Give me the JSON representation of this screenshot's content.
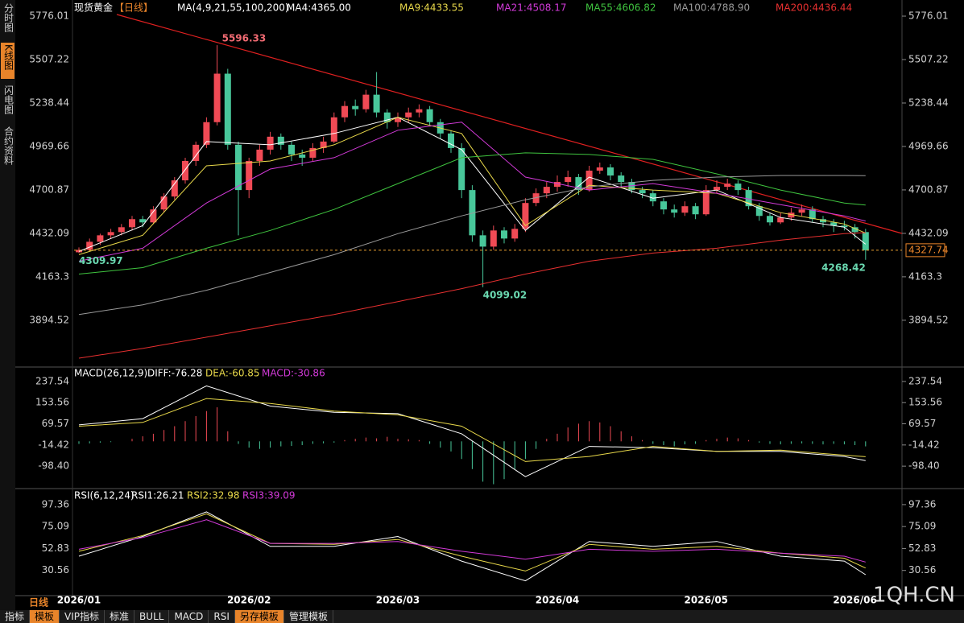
{
  "chart_data": {
    "type": "candlestick",
    "title": "现货黄金",
    "period": "【日线】",
    "ma_params": "MA(4,9,21,55,100,200)",
    "categories": [
      "2026/01",
      null,
      null,
      null,
      null,
      null,
      null,
      null,
      null,
      null,
      null,
      null,
      null,
      null,
      null,
      null,
      "2026/02",
      null,
      null,
      null,
      null,
      null,
      null,
      null,
      null,
      null,
      null,
      null,
      null,
      null,
      "2026/03",
      null,
      null,
      null,
      null,
      null,
      null,
      null,
      null,
      null,
      null,
      null,
      null,
      null,
      null,
      "2026/04",
      null,
      null,
      null,
      null,
      null,
      null,
      null,
      null,
      null,
      null,
      null,
      null,
      null,
      "2026/05",
      null,
      null,
      null,
      null,
      null,
      null,
      null,
      null,
      null,
      null,
      null,
      null,
      null,
      "2026/06",
      null
    ],
    "candles": [
      [
        4315,
        4345,
        4309.97,
        4330
      ],
      [
        4330,
        4400,
        4320,
        4380
      ],
      [
        4380,
        4430,
        4360,
        4420
      ],
      [
        4420,
        4460,
        4400,
        4440
      ],
      [
        4440,
        4490,
        4420,
        4470
      ],
      [
        4470,
        4540,
        4450,
        4520
      ],
      [
        4520,
        4540,
        4470,
        4500
      ],
      [
        4500,
        4600,
        4490,
        4580
      ],
      [
        4580,
        4680,
        4560,
        4660
      ],
      [
        4660,
        4780,
        4640,
        4760
      ],
      [
        4760,
        4900,
        4740,
        4880
      ],
      [
        4880,
        5000,
        4850,
        4980
      ],
      [
        4980,
        5150,
        4960,
        5120
      ],
      [
        5120,
        5596.33,
        5100,
        5420
      ],
      [
        5420,
        5450,
        4950,
        4980
      ],
      [
        4980,
        5000,
        4420,
        4700
      ],
      [
        4700,
        4900,
        4650,
        4880
      ],
      [
        4880,
        4980,
        4850,
        4950
      ],
      [
        4950,
        5060,
        4920,
        5030
      ],
      [
        5030,
        5050,
        4950,
        4980
      ],
      [
        4980,
        5000,
        4880,
        4920
      ],
      [
        4920,
        4950,
        4850,
        4900
      ],
      [
        4900,
        4990,
        4880,
        4960
      ],
      [
        4960,
        5030,
        4930,
        5000
      ],
      [
        5000,
        5180,
        4990,
        5150
      ],
      [
        5150,
        5250,
        5120,
        5220
      ],
      [
        5220,
        5260,
        5160,
        5200
      ],
      [
        5200,
        5320,
        5180,
        5290
      ],
      [
        5290,
        5430,
        5150,
        5180
      ],
      [
        5180,
        5200,
        5080,
        5120
      ],
      [
        5120,
        5180,
        5090,
        5150
      ],
      [
        5150,
        5210,
        5120,
        5180
      ],
      [
        5180,
        5230,
        5150,
        5200
      ],
      [
        5200,
        5220,
        5100,
        5120
      ],
      [
        5120,
        5140,
        5020,
        5050
      ],
      [
        5050,
        5070,
        4930,
        4960
      ],
      [
        4960,
        4990,
        4650,
        4700
      ],
      [
        4700,
        4730,
        4380,
        4420
      ],
      [
        4420,
        4450,
        4099.02,
        4350
      ],
      [
        4350,
        4480,
        4330,
        4450
      ],
      [
        4450,
        4470,
        4370,
        4400
      ],
      [
        4400,
        4490,
        4380,
        4460
      ],
      [
        4460,
        4650,
        4440,
        4620
      ],
      [
        4620,
        4710,
        4600,
        4680
      ],
      [
        4680,
        4750,
        4650,
        4720
      ],
      [
        4720,
        4790,
        4690,
        4750
      ],
      [
        4750,
        4820,
        4720,
        4780
      ],
      [
        4780,
        4800,
        4670,
        4700
      ],
      [
        4700,
        4850,
        4690,
        4820
      ],
      [
        4820,
        4870,
        4800,
        4840
      ],
      [
        4840,
        4860,
        4760,
        4790
      ],
      [
        4790,
        4810,
        4720,
        4750
      ],
      [
        4750,
        4770,
        4680,
        4700
      ],
      [
        4700,
        4720,
        4650,
        4680
      ],
      [
        4680,
        4700,
        4600,
        4630
      ],
      [
        4630,
        4650,
        4550,
        4580
      ],
      [
        4580,
        4610,
        4530,
        4560
      ],
      [
        4560,
        4630,
        4540,
        4600
      ],
      [
        4600,
        4620,
        4520,
        4550
      ],
      [
        4550,
        4730,
        4540,
        4700
      ],
      [
        4700,
        4760,
        4680,
        4720
      ],
      [
        4720,
        4770,
        4700,
        4740
      ],
      [
        4740,
        4760,
        4670,
        4700
      ],
      [
        4700,
        4720,
        4580,
        4600
      ],
      [
        4600,
        4620,
        4510,
        4540
      ],
      [
        4540,
        4560,
        4480,
        4500
      ],
      [
        4500,
        4560,
        4490,
        4530
      ],
      [
        4530,
        4590,
        4510,
        4560
      ],
      [
        4560,
        4610,
        4540,
        4580
      ],
      [
        4580,
        4600,
        4500,
        4520
      ],
      [
        4520,
        4540,
        4470,
        4500
      ],
      [
        4500,
        4520,
        4440,
        4480
      ],
      [
        4480,
        4510,
        4450,
        4470
      ],
      [
        4470,
        4490,
        4400,
        4440
      ],
      [
        4440,
        4460,
        4268.42,
        4327.74
      ]
    ],
    "up_color": "#f04a55",
    "down_color": "#48c79a",
    "ylim": [
      3610,
      5816
    ],
    "yticks": [
      5776.01,
      5507.22,
      5238.44,
      4969.66,
      4700.87,
      4432.09,
      4163.3,
      3894.52
    ],
    "last_price": 4327.74,
    "annotations": [
      5596.33,
      4309.97,
      4099.02,
      4268.42
    ],
    "ma_x": [
      0,
      6,
      12,
      18,
      24,
      30,
      36,
      42,
      48,
      54,
      60,
      66,
      72,
      74
    ],
    "ma_series": [
      {
        "name": "MA4:4365.00",
        "color": "#ffffff",
        "values": [
          4320,
          4480,
          5000,
          4980,
          5050,
          5150,
          4950,
          4450,
          4780,
          4650,
          4700,
          4530,
          4470,
          4365
        ]
      },
      {
        "name": "MA9:4433.55",
        "color": "#e8d84a",
        "values": [
          4300,
          4420,
          4850,
          4880,
          4980,
          5150,
          5050,
          4480,
          4730,
          4700,
          4680,
          4560,
          4490,
          4433.55
        ]
      },
      {
        "name": "MA21:4508.17",
        "color": "#d23ad8",
        "values": [
          4260,
          4340,
          4620,
          4830,
          4900,
          5070,
          5120,
          4780,
          4700,
          4740,
          4680,
          4610,
          4540,
          4508.17
        ]
      },
      {
        "name": "MA55:4606.82",
        "color": "#3fc43f",
        "values": [
          4180,
          4220,
          4340,
          4450,
          4580,
          4740,
          4900,
          4930,
          4920,
          4890,
          4800,
          4700,
          4620,
          4606.82
        ]
      },
      {
        "name": "MA100:4788.90",
        "color": "#9a9a9a",
        "values": [
          3930,
          3990,
          4080,
          4190,
          4300,
          4430,
          4540,
          4640,
          4720,
          4760,
          4780,
          4790,
          4790,
          4788.9
        ]
      },
      {
        "name": "MA200:4436.44",
        "color": "#e83030",
        "values": [
          3660,
          3720,
          3790,
          3860,
          3930,
          4010,
          4090,
          4180,
          4260,
          4310,
          4340,
          4390,
          4430,
          4436.44
        ]
      }
    ],
    "macd": {
      "title": "MACD(26,12,9)",
      "ylim": [
        -181,
        250
      ],
      "yticks": [
        237.54,
        153.56,
        69.57,
        -14.42,
        {
          "value": -98.4,
          "label": "-98.40"
        }
      ],
      "hist_name": "MACD:-30.86",
      "hist_label_color": "#d23ad8",
      "hist_up_color": "#f04a55",
      "hist_down_color": "#48c79a",
      "hist": [
        -10,
        -8,
        -5,
        -3,
        0,
        10,
        20,
        30,
        45,
        60,
        80,
        100,
        120,
        135,
        40,
        -10,
        -25,
        -30,
        -25,
        -20,
        -18,
        -15,
        -10,
        -8,
        -5,
        5,
        10,
        15,
        12,
        18,
        10,
        8,
        5,
        -10,
        -25,
        -40,
        -70,
        -110,
        -160,
        -170,
        -150,
        -110,
        -70,
        -30,
        10,
        30,
        55,
        70,
        80,
        75,
        60,
        40,
        20,
        5,
        -10,
        -15,
        -20,
        -12,
        -10,
        5,
        10,
        15,
        12,
        5,
        -5,
        -10,
        -12,
        -10,
        -8,
        -10,
        -12,
        -10,
        -12,
        -15,
        -20
      ],
      "series": [
        {
          "name": "DIFF:-76.28",
          "color": "#ffffff",
          "values": [
            65,
            90,
            220,
            140,
            115,
            110,
            30,
            -140,
            -20,
            -25,
            -40,
            -40,
            -60,
            -76.28
          ]
        },
        {
          "name": "DEA:-60.85",
          "color": "#e8d84a",
          "values": [
            60,
            75,
            170,
            150,
            120,
            105,
            60,
            -80,
            -60,
            -20,
            -40,
            -35,
            -55,
            -60.85
          ]
        }
      ]
    },
    "rsi": {
      "title": "RSI(6,12,24)",
      "ylim": [
        5,
        103
      ],
      "yticks": [
        97.36,
        75.09,
        52.83,
        30.56
      ],
      "series": [
        {
          "name": "RSI1:26.21",
          "color": "#ffffff",
          "values": [
            45,
            65,
            90,
            55,
            55,
            65,
            40,
            20,
            60,
            55,
            60,
            45,
            40,
            26.21
          ]
        },
        {
          "name": "RSI2:32.98",
          "color": "#e8d84a",
          "values": [
            50,
            66,
            88,
            58,
            57,
            62,
            45,
            30,
            57,
            52,
            55,
            48,
            43,
            32.98
          ]
        },
        {
          "name": "RSI3:39.09",
          "color": "#d23ad8",
          "values": [
            52,
            64,
            82,
            58,
            58,
            60,
            50,
            42,
            52,
            50,
            52,
            48,
            45,
            39.09
          ]
        }
      ]
    }
  },
  "ui": {
    "side_tabs": [
      "分时图",
      "K线图",
      "闪电图",
      "合约资料"
    ],
    "bottom_tabs": [
      "指标",
      "模板",
      "VIP指标",
      "标准",
      "BULL",
      "MACD",
      "RSI",
      "另存模板",
      "管理模板"
    ],
    "period_label": "日线",
    "watermark": "1QH.CN"
  }
}
